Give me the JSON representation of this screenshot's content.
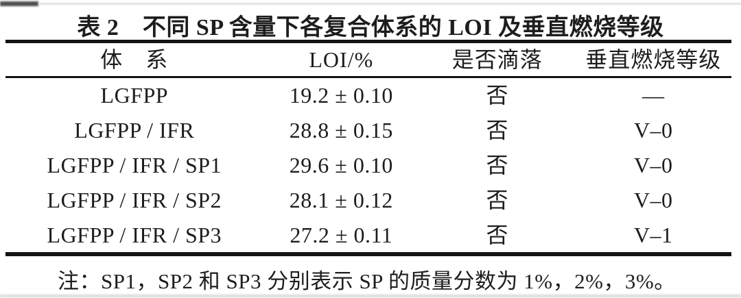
{
  "page": {
    "title": "表 2　不同 SP 含量下各复合体系的 LOI 及垂直燃烧等级",
    "note": "注：SP1，SP2 和 SP3 分别表示 SP 的质量分数为 1%，2%，3%。",
    "text_color": "#1d1d1d",
    "rule_color": "#141414",
    "background_color": "#ffffff"
  },
  "table": {
    "columns": [
      {
        "key": "system",
        "label": "体　系"
      },
      {
        "key": "loi",
        "label": "LOI/%"
      },
      {
        "key": "dripping",
        "label": "是否滴落"
      },
      {
        "key": "rating",
        "label": "垂直燃烧等级"
      }
    ],
    "rows": [
      {
        "system": "LGFPP",
        "loi": "19.2 ± 0.10",
        "dripping": "否",
        "rating": "—"
      },
      {
        "system": "LGFPP / IFR",
        "loi": "28.8 ± 0.15",
        "dripping": "否",
        "rating": "V–0"
      },
      {
        "system": "LGFPP / IFR / SP1",
        "loi": "29.6 ± 0.10",
        "dripping": "否",
        "rating": "V–0"
      },
      {
        "system": "LGFPP / IFR / SP2",
        "loi": "28.1 ± 0.12",
        "dripping": "否",
        "rating": "V–0"
      },
      {
        "system": "LGFPP / IFR / SP3",
        "loi": "27.2 ± 0.11",
        "dripping": "否",
        "rating": "V–1"
      }
    ]
  },
  "chart_data": {
    "type": "table",
    "title": "表 2　不同 SP 含量下各复合体系的 LOI 及垂直燃烧等级",
    "columns": [
      "体系",
      "LOI/%",
      "是否滴落",
      "垂直燃烧等级"
    ],
    "rows": [
      [
        "LGFPP",
        "19.2 ± 0.10",
        "否",
        "—"
      ],
      [
        "LGFPP/IFR",
        "28.8 ± 0.15",
        "否",
        "V–0"
      ],
      [
        "LGFPP/IFR/SP1",
        "29.6 ± 0.10",
        "否",
        "V–0"
      ],
      [
        "LGFPP/IFR/SP2",
        "28.1 ± 0.12",
        "否",
        "V–0"
      ],
      [
        "LGFPP/IFR/SP3",
        "27.2 ± 0.11",
        "否",
        "V–1"
      ]
    ],
    "loi_values": [
      19.2,
      28.8,
      29.6,
      28.1,
      27.2
    ],
    "loi_errors": [
      0.1,
      0.15,
      0.1,
      0.12,
      0.11
    ],
    "footnote": "注：SP1，SP2 和 SP3 分别表示 SP 的质量分数为 1%，2%，3%。"
  }
}
